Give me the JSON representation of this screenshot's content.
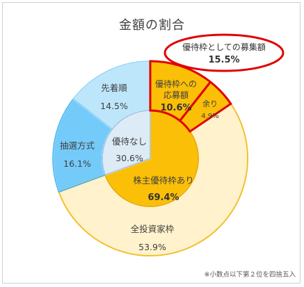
{
  "chart_data": {
    "type": "pie",
    "title": "金額の割合",
    "inner": [
      {
        "label": "株主優待枠あり",
        "value": 69.4,
        "display": "69.4%",
        "color": "#fbbf07"
      },
      {
        "label": "優待なし",
        "value": 30.6,
        "display": "30.6%",
        "color": "#ddebf7"
      }
    ],
    "outer": [
      {
        "label": "優待枠への応募額",
        "value": 10.6,
        "display": "10.6%",
        "color": "#fbbf07",
        "highlight": true
      },
      {
        "label": "余り",
        "value": 4.9,
        "display": "4.9%",
        "color": "#fbbf07",
        "highlight": true
      },
      {
        "label": "全投資家枠",
        "value": 53.9,
        "display": "53.9%",
        "color": "#fff2cc"
      },
      {
        "label": "抽選方式",
        "value": 16.1,
        "display": "16.1%",
        "color": "#74cbf9"
      },
      {
        "label": "先着順",
        "value": 14.5,
        "display": "14.5%",
        "color": "#bde6fb"
      }
    ],
    "callout": {
      "label": "優待枠としての募集額",
      "value": "15.5%"
    },
    "note": "※小数点以下第２位を四捨五入"
  }
}
